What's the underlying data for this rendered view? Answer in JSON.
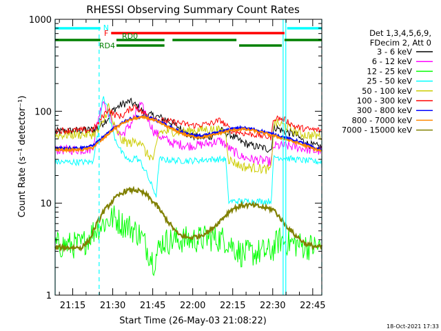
{
  "chart_data": {
    "type": "line",
    "title": "RHESSI Observing Summary Count Rates",
    "xlabel": "Start Time (26-May-03 21:08:22)",
    "ylabel": "Count Rate (s⁻¹ detector⁻¹)",
    "y_scale": "log",
    "ylim": [
      1,
      1000
    ],
    "xlim_minutes": [
      0,
      100
    ],
    "x_ticks": [
      {
        "label": "21:15",
        "t": 6.6
      },
      {
        "label": "21:30",
        "t": 21.6
      },
      {
        "label": "21:45",
        "t": 36.6
      },
      {
        "label": "22:00",
        "t": 51.6
      },
      {
        "label": "22:15",
        "t": 66.6
      },
      {
        "label": "22:30",
        "t": 81.6
      },
      {
        "label": "22:45",
        "t": 96.6
      }
    ],
    "y_ticks": [
      {
        "label": "1",
        "v": 1
      },
      {
        "label": "10",
        "v": 10
      },
      {
        "label": "100",
        "v": 100
      },
      {
        "label": "1000",
        "v": 1000
      }
    ],
    "legend": {
      "position": "top-right",
      "header": [
        "Det 1,3,4,5,6,9,",
        "FDecim 2, Att 0"
      ]
    },
    "series": [
      {
        "name": "3 - 6 keV",
        "color": "#000000",
        "points": [
          [
            0,
            60
          ],
          [
            10,
            62
          ],
          [
            14,
            63
          ],
          [
            16,
            66
          ],
          [
            18,
            75
          ],
          [
            20,
            85
          ],
          [
            22,
            105
          ],
          [
            25,
            118
          ],
          [
            28,
            128
          ],
          [
            31,
            112
          ],
          [
            34,
            92
          ],
          [
            38,
            88
          ],
          [
            42,
            80
          ],
          [
            46,
            68
          ],
          [
            50,
            55
          ],
          [
            54,
            52
          ],
          [
            58,
            53
          ],
          [
            62,
            62
          ],
          [
            66,
            55
          ],
          [
            70,
            46
          ],
          [
            74,
            42
          ],
          [
            78,
            40
          ],
          [
            81,
            38
          ],
          [
            82,
            68
          ],
          [
            86,
            60
          ],
          [
            90,
            56
          ],
          [
            94,
            45
          ],
          [
            97,
            42
          ],
          [
            100,
            41
          ]
        ]
      },
      {
        "name": "6 - 12 keV",
        "color": "#ff00ff",
        "points": [
          [
            0,
            38
          ],
          [
            10,
            38
          ],
          [
            14,
            39
          ],
          [
            16,
            80
          ],
          [
            18,
            135
          ],
          [
            20,
            95
          ],
          [
            22,
            68
          ],
          [
            25,
            55
          ],
          [
            28,
            70
          ],
          [
            32,
            118
          ],
          [
            34,
            95
          ],
          [
            37,
            60
          ],
          [
            40,
            52
          ],
          [
            44,
            45
          ],
          [
            50,
            42
          ],
          [
            54,
            43
          ],
          [
            58,
            45
          ],
          [
            62,
            48
          ],
          [
            66,
            38
          ],
          [
            70,
            32
          ],
          [
            74,
            30
          ],
          [
            78,
            29
          ],
          [
            81,
            28
          ],
          [
            82,
            42
          ],
          [
            86,
            42
          ],
          [
            90,
            41
          ],
          [
            94,
            39
          ],
          [
            97,
            37
          ],
          [
            100,
            37
          ]
        ]
      },
      {
        "name": "12 - 25 keV",
        "color": "#00ff00",
        "points": [
          [
            0,
            3.5
          ],
          [
            10,
            3.5
          ],
          [
            13,
            4.5
          ],
          [
            16,
            5.5
          ],
          [
            18,
            6
          ],
          [
            20,
            6.5
          ],
          [
            22,
            7
          ],
          [
            25,
            6
          ],
          [
            28,
            5.5
          ],
          [
            32,
            4.5
          ],
          [
            35,
            3
          ],
          [
            37,
            2.3
          ],
          [
            40,
            3.8
          ],
          [
            46,
            4
          ],
          [
            52,
            4
          ],
          [
            58,
            4.2
          ],
          [
            64,
            4
          ],
          [
            70,
            2.8
          ],
          [
            76,
            2.9
          ],
          [
            81,
            3
          ],
          [
            84,
            4
          ],
          [
            90,
            3.6
          ],
          [
            94,
            3.4
          ],
          [
            100,
            3.3
          ]
        ]
      },
      {
        "name": "25 - 50 keV",
        "color": "#00ffff",
        "points": [
          [
            0,
            28
          ],
          [
            10,
            28
          ],
          [
            14,
            28
          ],
          [
            16,
            55
          ],
          [
            18,
            155
          ],
          [
            20,
            95
          ],
          [
            22,
            55
          ],
          [
            25,
            35
          ],
          [
            28,
            28
          ],
          [
            30,
            32
          ],
          [
            32,
            28
          ],
          [
            34,
            22
          ],
          [
            36,
            16
          ],
          [
            38,
            12
          ],
          [
            39,
            30
          ],
          [
            46,
            29
          ],
          [
            52,
            29
          ],
          [
            58,
            30
          ],
          [
            64,
            30
          ],
          [
            65,
            10.5
          ],
          [
            70,
            10.5
          ],
          [
            76,
            10.5
          ],
          [
            81,
            10.5
          ],
          [
            82,
            32
          ],
          [
            86,
            31
          ],
          [
            90,
            30
          ],
          [
            94,
            29
          ],
          [
            100,
            28
          ]
        ]
      },
      {
        "name": "50 - 100 keV",
        "color": "#cccc00",
        "points": [
          [
            0,
            55
          ],
          [
            10,
            56
          ],
          [
            14,
            56
          ],
          [
            16,
            60
          ],
          [
            18,
            75
          ],
          [
            20,
            115
          ],
          [
            22,
            70
          ],
          [
            25,
            48
          ],
          [
            28,
            45
          ],
          [
            32,
            48
          ],
          [
            34,
            35
          ],
          [
            37,
            30
          ],
          [
            39,
            60
          ],
          [
            46,
            60
          ],
          [
            52,
            62
          ],
          [
            58,
            64
          ],
          [
            64,
            60
          ],
          [
            65,
            30
          ],
          [
            70,
            25
          ],
          [
            76,
            24
          ],
          [
            81,
            23
          ],
          [
            82,
            75
          ],
          [
            86,
            70
          ],
          [
            90,
            60
          ],
          [
            94,
            55
          ],
          [
            100,
            54
          ]
        ]
      },
      {
        "name": "100 - 300 keV",
        "color": "#ff0000",
        "points": [
          [
            0,
            62
          ],
          [
            10,
            62
          ],
          [
            14,
            63
          ],
          [
            16,
            72
          ],
          [
            18,
            90
          ],
          [
            20,
            105
          ],
          [
            22,
            92
          ],
          [
            25,
            88
          ],
          [
            28,
            105
          ],
          [
            30,
            115
          ],
          [
            32,
            100
          ],
          [
            35,
            90
          ],
          [
            39,
            80
          ],
          [
            46,
            75
          ],
          [
            52,
            70
          ],
          [
            58,
            73
          ],
          [
            62,
            80
          ],
          [
            66,
            62
          ],
          [
            70,
            58
          ],
          [
            76,
            55
          ],
          [
            81,
            52
          ],
          [
            82,
            85
          ],
          [
            86,
            82
          ],
          [
            90,
            68
          ],
          [
            94,
            64
          ],
          [
            100,
            62
          ]
        ]
      },
      {
        "name": "300 - 800 keV",
        "color": "#0000ff",
        "points": [
          [
            0,
            40
          ],
          [
            10,
            40
          ],
          [
            14,
            42
          ],
          [
            18,
            52
          ],
          [
            22,
            65
          ],
          [
            26,
            78
          ],
          [
            30,
            86
          ],
          [
            34,
            88
          ],
          [
            38,
            80
          ],
          [
            42,
            70
          ],
          [
            46,
            62
          ],
          [
            50,
            56
          ],
          [
            54,
            54
          ],
          [
            58,
            56
          ],
          [
            62,
            60
          ],
          [
            66,
            64
          ],
          [
            70,
            66
          ],
          [
            74,
            64
          ],
          [
            78,
            60
          ],
          [
            82,
            56
          ],
          [
            86,
            52
          ],
          [
            90,
            48
          ],
          [
            94,
            44
          ],
          [
            97,
            40
          ],
          [
            100,
            38
          ]
        ]
      },
      {
        "name": "800 - 7000 keV",
        "color": "#ff8800",
        "points": [
          [
            0,
            38
          ],
          [
            10,
            38
          ],
          [
            14,
            40
          ],
          [
            18,
            50
          ],
          [
            22,
            64
          ],
          [
            26,
            76
          ],
          [
            30,
            84
          ],
          [
            34,
            86
          ],
          [
            38,
            78
          ],
          [
            42,
            68
          ],
          [
            46,
            60
          ],
          [
            50,
            54
          ],
          [
            54,
            52
          ],
          [
            58,
            54
          ],
          [
            62,
            58
          ],
          [
            66,
            62
          ],
          [
            70,
            64
          ],
          [
            74,
            62
          ],
          [
            78,
            58
          ],
          [
            82,
            54
          ],
          [
            86,
            50
          ],
          [
            90,
            46
          ],
          [
            94,
            42
          ],
          [
            97,
            39
          ],
          [
            100,
            37
          ]
        ]
      },
      {
        "name": "7000 - 15000 keV",
        "color": "#808000",
        "points": [
          [
            0,
            3.3
          ],
          [
            10,
            3.3
          ],
          [
            13,
            4
          ],
          [
            15,
            5.5
          ],
          [
            18,
            8
          ],
          [
            22,
            11
          ],
          [
            26,
            13.5
          ],
          [
            30,
            14
          ],
          [
            34,
            12.5
          ],
          [
            38,
            9.5
          ],
          [
            42,
            6.5
          ],
          [
            46,
            4.6
          ],
          [
            50,
            4.2
          ],
          [
            54,
            4.4
          ],
          [
            58,
            5
          ],
          [
            62,
            6.5
          ],
          [
            66,
            8.5
          ],
          [
            70,
            9.5
          ],
          [
            74,
            9.5
          ],
          [
            78,
            9
          ],
          [
            82,
            8.5
          ],
          [
            86,
            6
          ],
          [
            90,
            4.5
          ],
          [
            94,
            3.6
          ],
          [
            97,
            3.4
          ],
          [
            100,
            3.3
          ]
        ]
      }
    ],
    "status_bars": [
      {
        "label": "N",
        "color": "#00ffff",
        "segments": [
          [
            0,
            17
          ],
          [
            87,
            100
          ]
        ],
        "row": 1
      },
      {
        "label": "F",
        "color": "#ff0000",
        "segments": [
          [
            21,
            86
          ]
        ],
        "row": 2
      },
      {
        "label": "RD0",
        "color": "#008000",
        "segments": [
          [
            0,
            17
          ],
          [
            23,
            41
          ],
          [
            44,
            68
          ],
          [
            86,
            100
          ]
        ],
        "row": 3
      },
      {
        "label": "RD4",
        "color": "#008000",
        "segments": [
          [
            23,
            41
          ],
          [
            69,
            85
          ]
        ],
        "row": 4
      }
    ],
    "vertical_markers": [
      {
        "t": 0,
        "color": "#00ffff",
        "style": "solid"
      },
      {
        "t": 16.5,
        "color": "#00ffff",
        "style": "dashed"
      },
      {
        "t": 85.5,
        "color": "#00ffff",
        "style": "solid"
      },
      {
        "t": 86.5,
        "color": "#00ffff",
        "style": "solid"
      },
      {
        "t": 100,
        "color": "#00ffff",
        "style": "dashed"
      }
    ],
    "date_stamp": "18-Oct-2021 17:33"
  }
}
